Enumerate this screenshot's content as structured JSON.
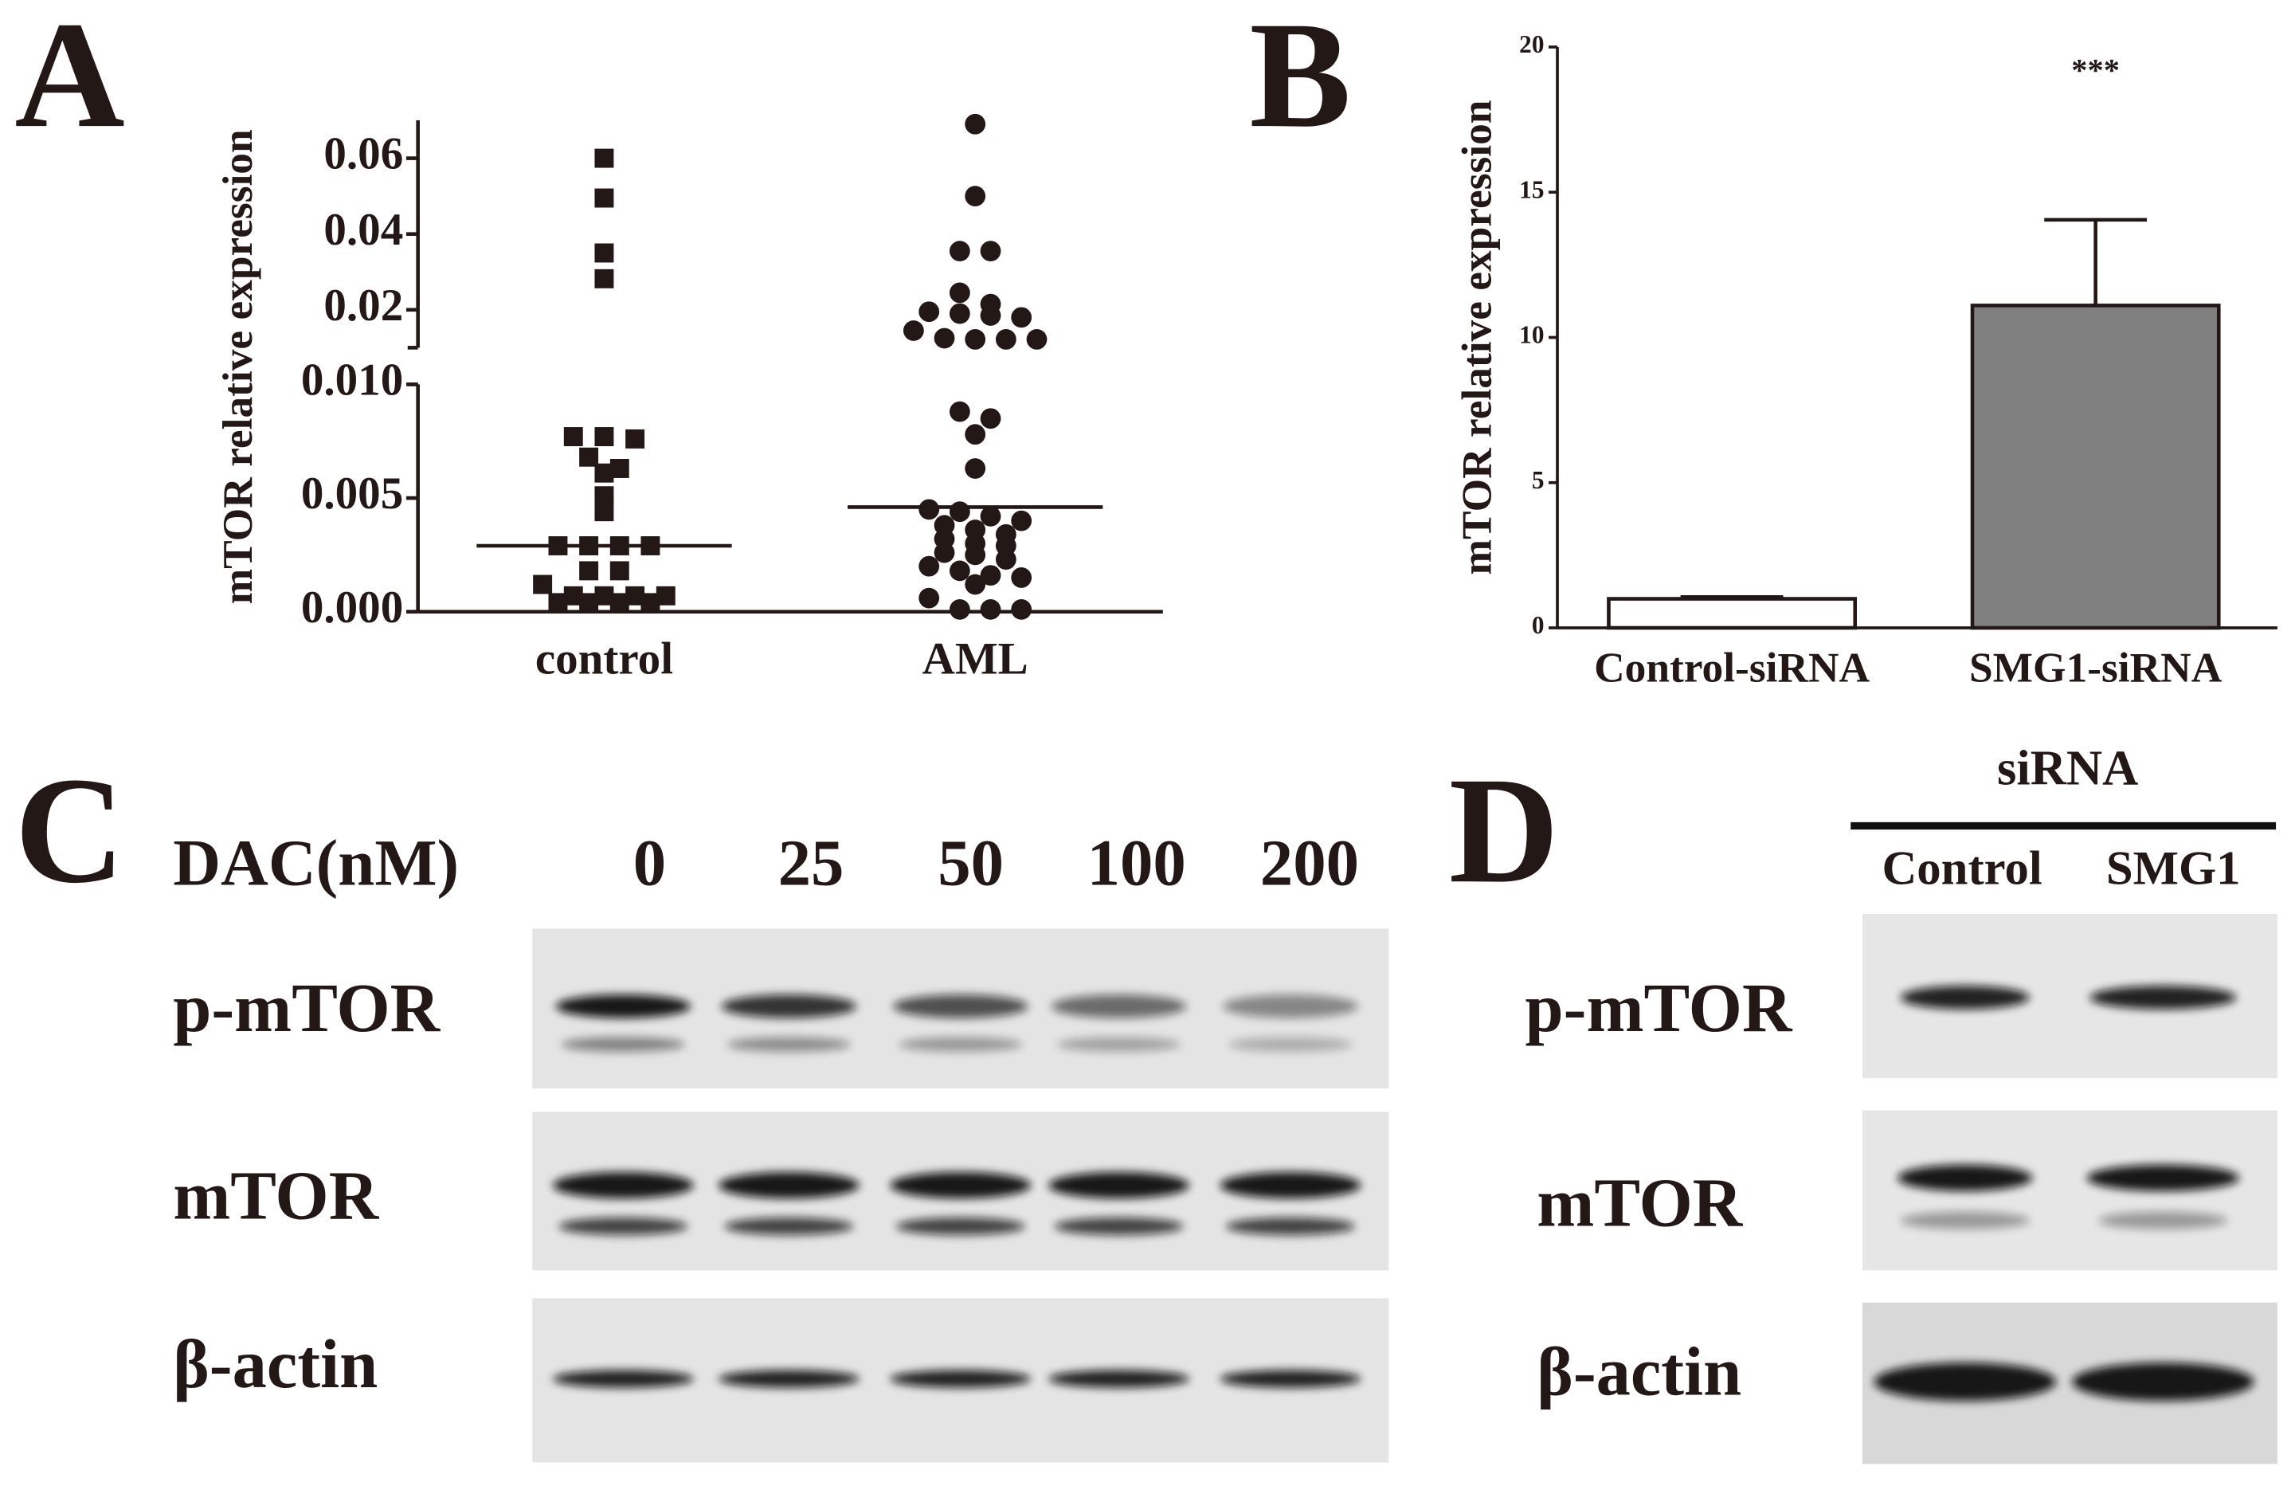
{
  "panel_labels": [
    "A",
    "B",
    "C",
    "D"
  ],
  "chart_data": [
    {
      "type": "scatter",
      "ylabel": "mTOR relative expression",
      "categories": [
        "control",
        "AML"
      ],
      "markers": [
        "square",
        "circle"
      ],
      "color": "#231815",
      "values": [
        [
          0.06,
          0.0495,
          0.035,
          0.0282,
          0.0077,
          0.0077,
          0.0076,
          0.0068,
          0.0063,
          0.0061,
          0.0051,
          0.0044,
          0.0029,
          0.0029,
          0.0029,
          0.0029,
          0.0018,
          0.0018,
          0.0012,
          0.0007,
          0.0007,
          0.0007,
          0.0007,
          0.0004,
          0.0004,
          0.0004,
          0.0004
        ],
        [
          0.069,
          0.05,
          0.0355,
          0.0355,
          0.0245,
          0.0215,
          0.0195,
          0.019,
          0.0185,
          0.018,
          0.0145,
          0.0125,
          0.0122,
          0.0122,
          0.0122,
          0.0088,
          0.0085,
          0.0078,
          0.0063,
          0.0045,
          0.0044,
          0.0042,
          0.004,
          0.0038,
          0.0036,
          0.0034,
          0.0032,
          0.003,
          0.0029,
          0.0026,
          0.0025,
          0.0023,
          0.002,
          0.0018,
          0.0016,
          0.0015,
          0.0012,
          0.0006,
          0.0001,
          0.0001,
          0.0001
        ]
      ],
      "means": [
        0.0029,
        0.0046
      ],
      "y_segments": [
        {
          "ylim": [
            0,
            0.01
          ],
          "yticks": [
            {
              "value": 0,
              "label": "0.000"
            },
            0.005,
            {
              "value": 0.01,
              "label": "0.010"
            }
          ]
        },
        {
          "ylim": [
            0.01,
            0.07
          ],
          "yticks": [
            0.02,
            0.04,
            0.06
          ]
        }
      ]
    },
    {
      "type": "bar",
      "ylabel": "mTOR relative expression",
      "categories": [
        "Control-siRNA",
        "SMG1-siRNA"
      ],
      "values": [
        1.0,
        11.1
      ],
      "errors": [
        0.06,
        2.95
      ],
      "colors": [
        "#ffffff",
        "#808080"
      ],
      "annotation": "***",
      "ylim": [
        0,
        20
      ],
      "yticks": [
        0,
        5,
        10,
        15,
        20
      ]
    }
  ],
  "blots": {
    "C": {
      "treatment_label": "DAC(nM)",
      "lanes": [
        "0",
        "25",
        "50",
        "100",
        "200"
      ],
      "rows": [
        "p-mTOR",
        "mTOR",
        "β-actin"
      ]
    },
    "D": {
      "group_label": "siRNA",
      "lanes": [
        "Control",
        "SMG1"
      ],
      "rows": [
        "p-mTOR",
        "mTOR",
        "β-actin"
      ]
    }
  }
}
